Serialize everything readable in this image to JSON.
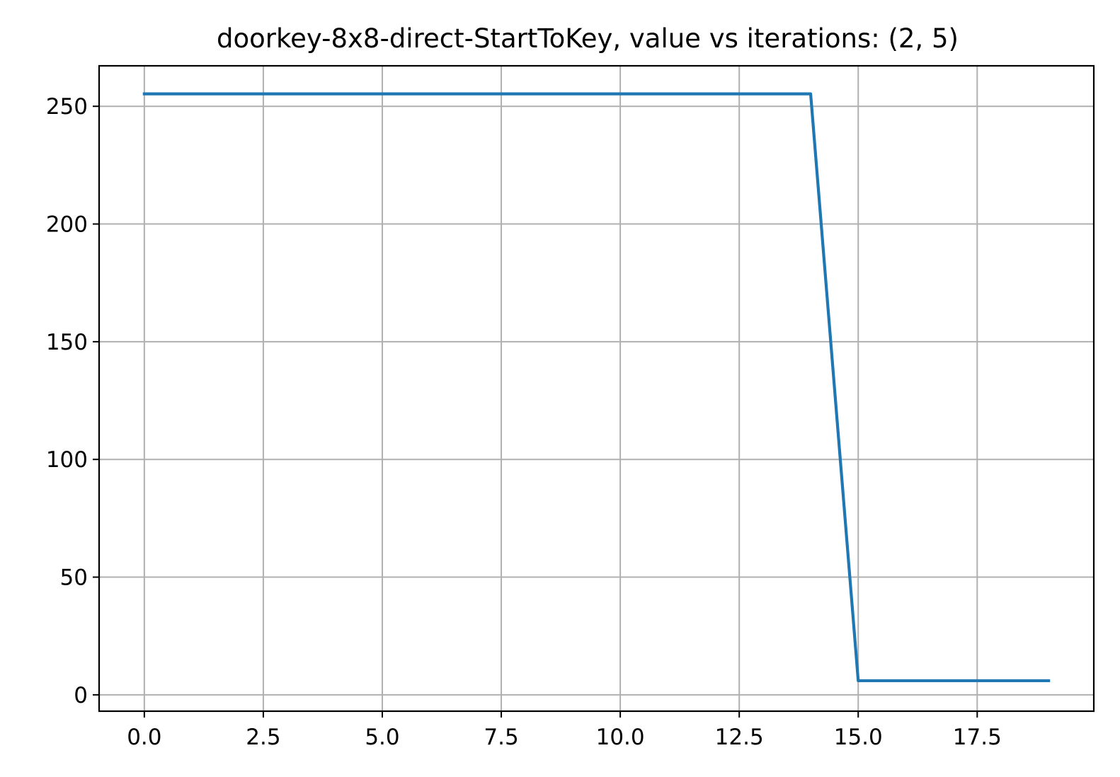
{
  "chart_data": {
    "type": "line",
    "title": "doorkey-8x8-direct-StartToKey, value vs iterations: (2, 5)",
    "xlabel": "",
    "ylabel": "",
    "xlim": [
      -0.95,
      19.95
    ],
    "ylim": [
      -6.95,
      267.2
    ],
    "xticks": [
      0.0,
      2.5,
      5.0,
      7.5,
      10.0,
      12.5,
      15.0,
      17.5
    ],
    "xtick_labels": [
      "0.0",
      "2.5",
      "5.0",
      "7.5",
      "10.0",
      "12.5",
      "15.0",
      "17.5"
    ],
    "yticks": [
      0,
      50,
      100,
      150,
      200,
      250
    ],
    "ytick_labels": [
      "0",
      "50",
      "100",
      "150",
      "200",
      "250"
    ],
    "grid": true,
    "series": [
      {
        "color": "#1f77b4",
        "x": [
          0,
          1,
          2,
          3,
          4,
          5,
          6,
          7,
          8,
          9,
          10,
          11,
          12,
          13,
          14,
          15,
          16,
          17,
          18,
          19
        ],
        "y": [
          255.3,
          255.3,
          255.3,
          255.3,
          255.3,
          255.3,
          255.3,
          255.3,
          255.3,
          255.3,
          255.3,
          255.3,
          255.3,
          255.3,
          255.3,
          6.0,
          6.0,
          6.0,
          6.0,
          6.0
        ]
      }
    ]
  }
}
